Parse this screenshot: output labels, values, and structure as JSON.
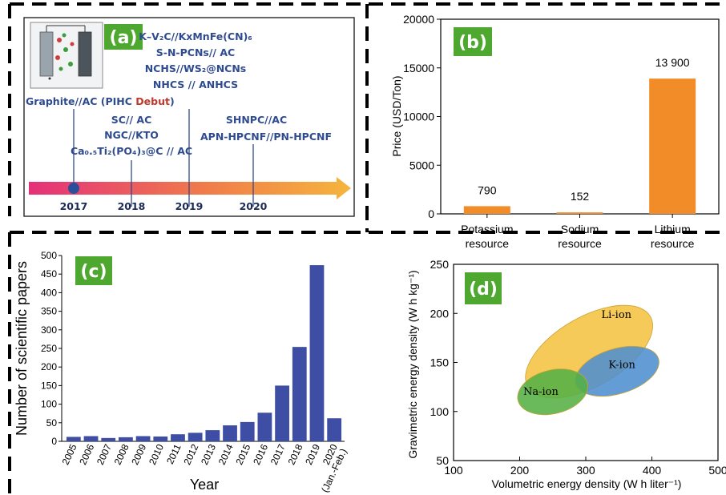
{
  "colors": {
    "label_green": "#4ea72e",
    "orange_bar": "#f28c28",
    "blue_bar": "#3f4ea5",
    "li_ion": "#f5c342",
    "k_ion": "#4f8fd0",
    "na_ion": "#55b046",
    "timeline_left": "#e4307a",
    "timeline_right": "#f5b53d"
  },
  "panel_a": {
    "label": "(a)",
    "graphite_prefix": "Graphite//AC (PIHC ",
    "debut": "Debut",
    "graphite_suffix": ")",
    "stack_2019": [
      "K–V₂C//KxMnFe(CN)₆",
      "S-N-PCNs// AC",
      "NCHS//WS₂@NCNs",
      "NHCS // ANHCS"
    ],
    "stack_2018": [
      "SC// AC",
      "NGC//KTO",
      "Ca₀.₅Ti₂(PO₄)₃@C // AC"
    ],
    "stack_2020": [
      "SHNPC//AC",
      "APN-HPCNF//PN-HPCNF"
    ],
    "years": [
      "2017",
      "2018",
      "2019",
      "2020"
    ]
  },
  "chart_data": [
    {
      "type": "bar",
      "panel": "(b)",
      "categories": [
        "Potassium resource",
        "Sodium resource",
        "Lithium resource"
      ],
      "values": [
        790,
        152,
        13900
      ],
      "value_labels": [
        "790",
        "152",
        "13 900"
      ],
      "ylabel": "Price (USD/Ton)",
      "ylim": [
        0,
        20000
      ],
      "yticks": [
        0,
        5000,
        10000,
        15000,
        20000
      ]
    },
    {
      "type": "bar",
      "panel": "(c)",
      "categories": [
        "2005",
        "2006",
        "2007",
        "2008",
        "2009",
        "2010",
        "2011",
        "2012",
        "2013",
        "2014",
        "2015",
        "2016",
        "2017",
        "2018",
        "2019",
        "2020\n(Jan.-Feb.)"
      ],
      "values": [
        12,
        14,
        9,
        11,
        14,
        13,
        19,
        23,
        30,
        43,
        52,
        77,
        150,
        254,
        474,
        62
      ],
      "xlabel": "Year",
      "ylabel": "Number of scientific papers",
      "ylim": [
        0,
        500
      ],
      "yticks": [
        0,
        50,
        100,
        150,
        200,
        250,
        300,
        350,
        400,
        450,
        500
      ]
    },
    {
      "type": "scatter",
      "panel": "(d)",
      "regions": [
        {
          "name": "Li-ion",
          "x_range": [
            190,
            420
          ],
          "y_range": [
            100,
            222
          ]
        },
        {
          "name": "K-ion",
          "x_range": [
            275,
            420
          ],
          "y_range": [
            110,
            172
          ]
        },
        {
          "name": "Na-ion",
          "x_range": [
            190,
            310
          ],
          "y_range": [
            90,
            150
          ]
        }
      ],
      "xlabel": "Volumetric energy density (W h liter⁻¹)",
      "ylabel": "Gravimetric energy density (W h kg⁻¹)",
      "xlim": [
        100,
        500
      ],
      "ylim": [
        50,
        250
      ],
      "xticks": [
        100,
        200,
        300,
        400,
        500
      ],
      "yticks": [
        50,
        100,
        150,
        200,
        250
      ]
    }
  ]
}
